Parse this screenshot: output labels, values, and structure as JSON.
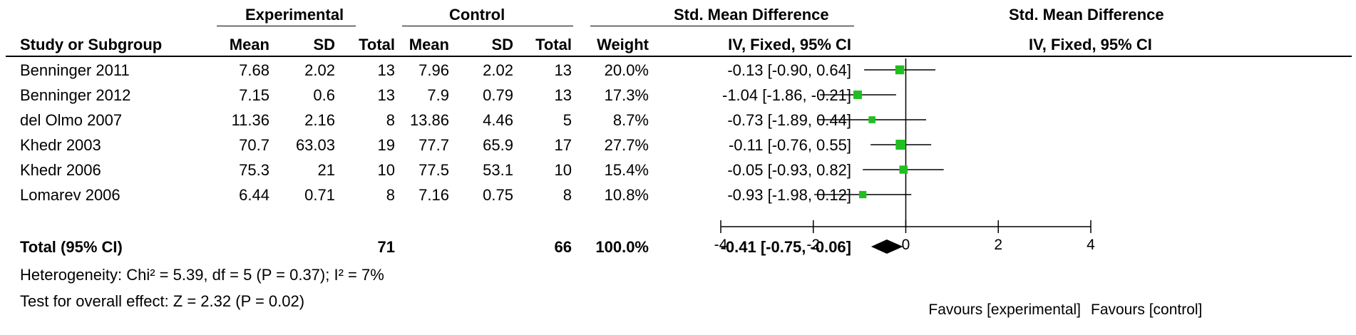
{
  "headers": {
    "experimental": "Experimental",
    "control": "Control",
    "smd_table": "Std. Mean Difference",
    "smd_plot": "Std. Mean Difference",
    "study": "Study or Subgroup",
    "mean_e": "Mean",
    "sd_e": "SD",
    "total_e": "Total",
    "mean_c": "Mean",
    "sd_c": "SD",
    "total_c": "Total",
    "weight": "Weight",
    "method_table": "IV, Fixed, 95% CI",
    "method_plot": "IV, Fixed, 95% CI"
  },
  "studies": [
    {
      "name": "Benninger 2011",
      "mean_e": "7.68",
      "sd_e": "2.02",
      "total_e": "13",
      "mean_c": "7.96",
      "sd_c": "2.02",
      "total_c": "13",
      "weight": "20.0%",
      "ci_text": "-0.13 [-0.90, 0.64]"
    },
    {
      "name": "Benninger 2012",
      "mean_e": "7.15",
      "sd_e": "0.6",
      "total_e": "13",
      "mean_c": "7.9",
      "sd_c": "0.79",
      "total_c": "13",
      "weight": "17.3%",
      "ci_text": "-1.04 [-1.86, -0.21]"
    },
    {
      "name": "del Olmo 2007",
      "mean_e": "11.36",
      "sd_e": "2.16",
      "total_e": "8",
      "mean_c": "13.86",
      "sd_c": "4.46",
      "total_c": "5",
      "weight": "8.7%",
      "ci_text": "-0.73 [-1.89, 0.44]"
    },
    {
      "name": "Khedr 2003",
      "mean_e": "70.7",
      "sd_e": "63.03",
      "total_e": "19",
      "mean_c": "77.7",
      "sd_c": "65.9",
      "total_c": "17",
      "weight": "27.7%",
      "ci_text": "-0.11 [-0.76, 0.55]"
    },
    {
      "name": "Khedr 2006",
      "mean_e": "75.3",
      "sd_e": "21",
      "total_e": "10",
      "mean_c": "77.5",
      "sd_c": "53.1",
      "total_c": "10",
      "weight": "15.4%",
      "ci_text": "-0.05 [-0.93, 0.82]"
    },
    {
      "name": "Lomarev 2006",
      "mean_e": "6.44",
      "sd_e": "0.71",
      "total_e": "8",
      "mean_c": "7.16",
      "sd_c": "0.75",
      "total_c": "8",
      "weight": "10.8%",
      "ci_text": "-0.93 [-1.98, 0.12]"
    }
  ],
  "total": {
    "label": "Total (95% CI)",
    "total_e": "71",
    "total_c": "66",
    "weight": "100.0%",
    "ci_text": "-0.41 [-0.75, -0.06]"
  },
  "heterogeneity": "Heterogeneity: Chi² = 5.39, df = 5 (P = 0.37); I² = 7%",
  "overall_effect": "Test for overall effect: Z = 2.32 (P = 0.02)",
  "favours_left": "Favours [experimental]",
  "favours_right": "Favours [control]",
  "colors": {
    "marker": "#1fbf1f",
    "diamond": "#000000",
    "line": "#000000"
  },
  "chart_data": {
    "type": "forest",
    "xlim": [
      -4,
      4
    ],
    "xticks": [
      -4,
      -2,
      0,
      2,
      4
    ],
    "tick_labels": [
      "-4",
      "-2",
      "0",
      "2",
      "4"
    ],
    "points": [
      {
        "est": -0.13,
        "lo": -0.9,
        "hi": 0.64,
        "weight": 20.0
      },
      {
        "est": -1.04,
        "lo": -1.86,
        "hi": -0.21,
        "weight": 17.3
      },
      {
        "est": -0.73,
        "lo": -1.89,
        "hi": 0.44,
        "weight": 8.7
      },
      {
        "est": -0.11,
        "lo": -0.76,
        "hi": 0.55,
        "weight": 27.7
      },
      {
        "est": -0.05,
        "lo": -0.93,
        "hi": 0.82,
        "weight": 15.4
      },
      {
        "est": -0.93,
        "lo": -1.98,
        "hi": 0.12,
        "weight": 10.8
      }
    ],
    "pooled": {
      "est": -0.41,
      "lo": -0.75,
      "hi": -0.06
    }
  }
}
